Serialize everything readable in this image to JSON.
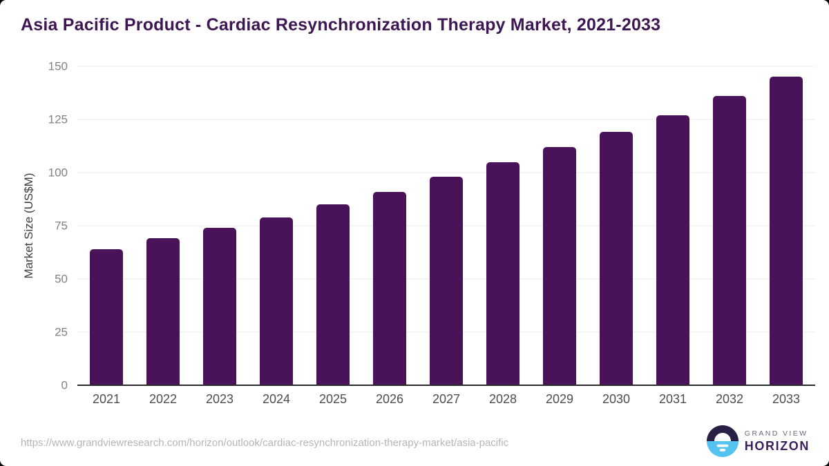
{
  "chart_data": {
    "type": "bar",
    "title": "Asia Pacific Product - Cardiac Resynchronization Therapy Market, 2021-2033",
    "categories": [
      "2021",
      "2022",
      "2023",
      "2024",
      "2025",
      "2026",
      "2027",
      "2028",
      "2029",
      "2030",
      "2031",
      "2032",
      "2033"
    ],
    "values": [
      64,
      69,
      74,
      79,
      85,
      91,
      98,
      105,
      112,
      119,
      127,
      136,
      145
    ],
    "xlabel": "",
    "ylabel": "Market Size (US$M)",
    "ylim": [
      0,
      150
    ],
    "yticks": [
      0,
      25,
      50,
      75,
      100,
      125,
      150
    ],
    "grid": "horizontal",
    "legend": false,
    "bar_color": "#4a1259"
  },
  "footer": {
    "source_url": "https://www.grandviewresearch.com/horizon/outlook/cardiac-resynchronization-therapy-market/asia-pacific",
    "logo": {
      "line1": "GRAND VIEW",
      "line2": "HORIZON"
    }
  },
  "colors": {
    "bar": "#4a1259",
    "title_text": "#3d1653",
    "axis_line": "#2b2b2b",
    "gridline": "#e8e8e8",
    "y_tick_label": "#818181",
    "x_tick_label": "#4d4d4d",
    "source_url_text": "#b5b5b5",
    "logo_dark": "#2a2045",
    "logo_blue": "#55c3f0",
    "logo_horizon_text": "#3a1f5d",
    "logo_grandview_text": "#6e6879"
  }
}
